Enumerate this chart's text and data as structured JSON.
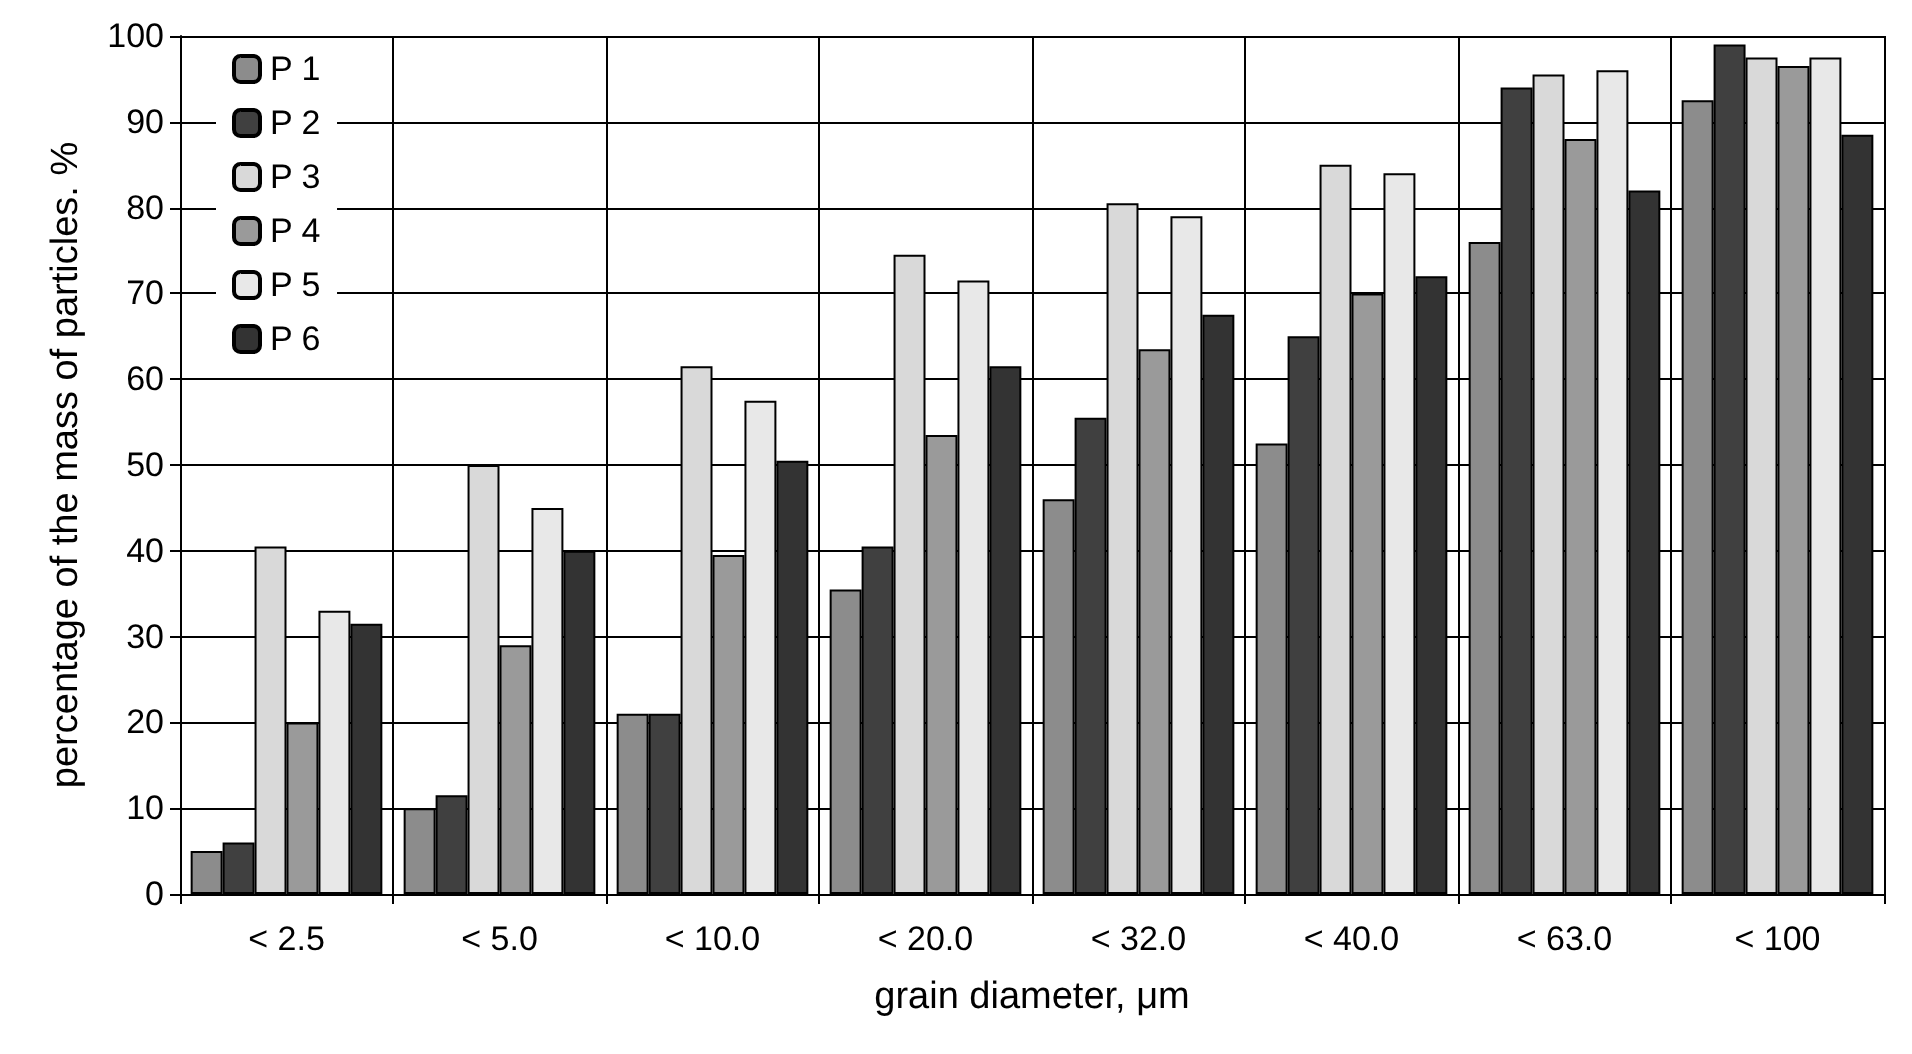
{
  "chart_data": {
    "type": "bar",
    "xlabel": "grain diameter, μm",
    "ylabel": "percentage of the mass of particles. %",
    "categories": [
      "< 2.5",
      "< 5.0",
      "< 10.0",
      "< 20.0",
      "< 32.0",
      "< 40.0",
      "< 63.0",
      "< 100"
    ],
    "series": [
      {
        "name": "P 1",
        "color": "#8c8c8c",
        "values": [
          5,
          10,
          21,
          35.5,
          46,
          52.5,
          76,
          92.5
        ]
      },
      {
        "name": "P 2",
        "color": "#404040",
        "values": [
          6,
          11.5,
          21,
          40.5,
          55.5,
          65,
          94,
          99
        ]
      },
      {
        "name": "P 3",
        "color": "#d9d9d9",
        "values": [
          40.5,
          50,
          61.5,
          74.5,
          80.5,
          85,
          95.5,
          97.5
        ]
      },
      {
        "name": "P 4",
        "color": "#9a9a9a",
        "values": [
          20,
          29,
          39.5,
          53.5,
          63.5,
          70,
          88,
          96.5
        ]
      },
      {
        "name": "P 5",
        "color": "#e8e8e8",
        "values": [
          33,
          45,
          57.5,
          71.5,
          79,
          84,
          96,
          97.5
        ]
      },
      {
        "name": "P 6",
        "color": "#333333",
        "values": [
          31.5,
          40,
          50.5,
          61.5,
          67.5,
          72,
          82,
          88.5
        ]
      }
    ],
    "ylim": [
      0,
      100
    ],
    "yticks": [
      0,
      10,
      20,
      30,
      40,
      50,
      60,
      70,
      80,
      90,
      100
    ],
    "grid": true,
    "legend": "top left"
  }
}
